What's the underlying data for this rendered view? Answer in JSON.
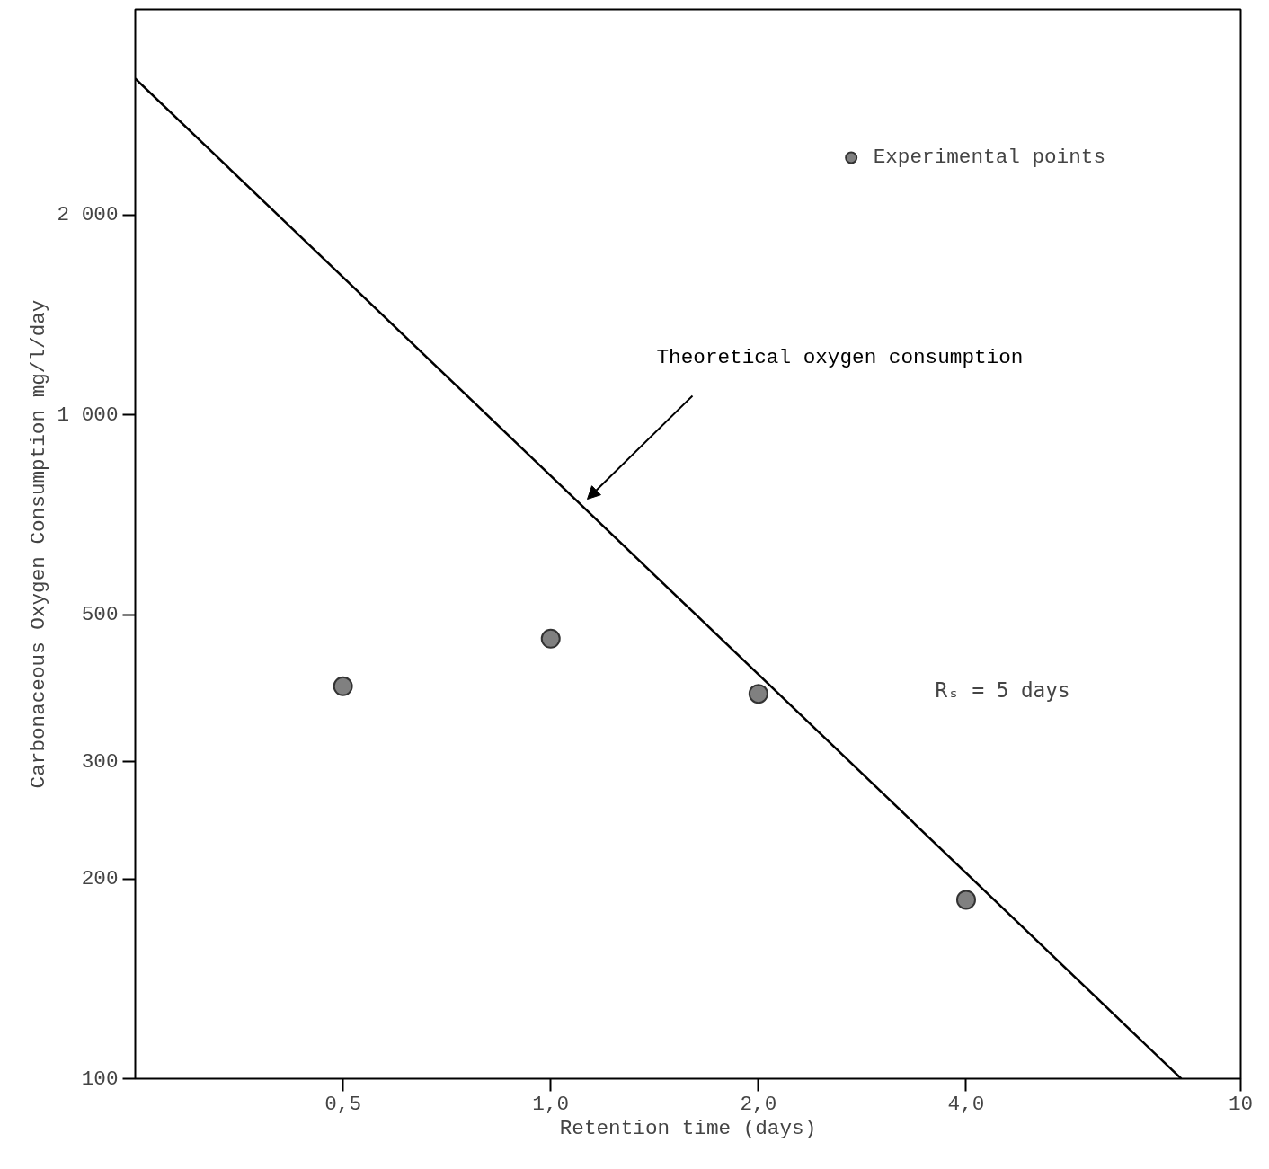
{
  "chart_data": {
    "type": "scatter",
    "xlabel": "Retention time (days)",
    "ylabel": "Carbonaceous Oxygen Consumption mg/l/day",
    "log": "xy",
    "grid": false,
    "legend": "top right",
    "xlim": [
      0.25,
      10
    ],
    "ylim": [
      100,
      4080
    ],
    "xticks": [
      {
        "value": 0.5,
        "label": "0,5"
      },
      {
        "value": 1,
        "label": "1,0"
      },
      {
        "value": 2,
        "label": "2,0"
      },
      {
        "value": 4,
        "label": "4,0"
      },
      10
    ],
    "yticks": [
      100,
      200,
      300,
      500,
      {
        "value": 1000,
        "label": "1 000"
      },
      {
        "value": 2000,
        "label": "2 000"
      }
    ],
    "series": [
      {
        "name": "Experimental points",
        "marker": "circle",
        "color": "#808080",
        "x": [
          0.5,
          1.0,
          2.0,
          4.0
        ],
        "values": [
          390,
          460,
          380,
          186
        ]
      },
      {
        "name": "Theoretical oxygen consumption",
        "type": "line",
        "color": "#000000",
        "x": [
          0.25,
          8.2
        ],
        "values": [
          3210,
          100
        ]
      }
    ],
    "annotations": [
      "Rₛ = 5 days"
    ]
  }
}
